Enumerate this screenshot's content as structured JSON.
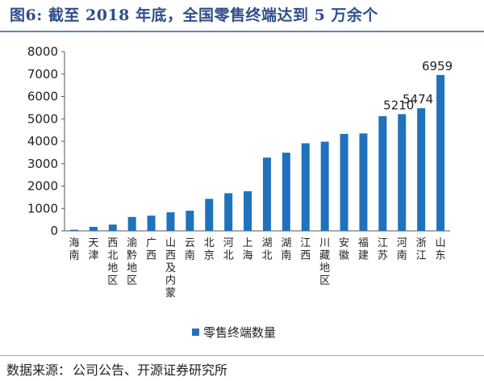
{
  "header": {
    "figure_label": "图6:",
    "title": "截至 2018 年底，全国零售终端达到 5 万余个"
  },
  "source": {
    "prefix": "数据来源：",
    "text": "公司公告、开源证券研究所"
  },
  "colors": {
    "bar": "#1f72bb",
    "title": "#2f4e8a",
    "axis": "#555555"
  },
  "chart_data": {
    "type": "bar",
    "title": "",
    "xlabel": "",
    "ylabel": "",
    "ylim": [
      0,
      8000
    ],
    "yticks": [
      0,
      1000,
      2000,
      3000,
      4000,
      5000,
      6000,
      7000,
      8000
    ],
    "grid": false,
    "legend_position": "bottom",
    "categories": [
      "海南",
      "天津",
      "西北地区",
      "渝黔地区",
      "广西",
      "山西及内蒙",
      "云南",
      "北京",
      "河北",
      "上海",
      "湖北",
      "湖南",
      "江西",
      "川藏地区",
      "安徽",
      "福建",
      "江苏",
      "河南",
      "浙江",
      "山东"
    ],
    "series": [
      {
        "name": "零售终端数量",
        "values": [
          50,
          180,
          280,
          620,
          680,
          830,
          900,
          1430,
          1680,
          1770,
          3270,
          3490,
          3910,
          3980,
          4330,
          4350,
          5120,
          5210,
          5474,
          6959
        ]
      }
    ],
    "data_labels": {
      "17": "5210",
      "18": "5474",
      "19": "6959"
    }
  }
}
